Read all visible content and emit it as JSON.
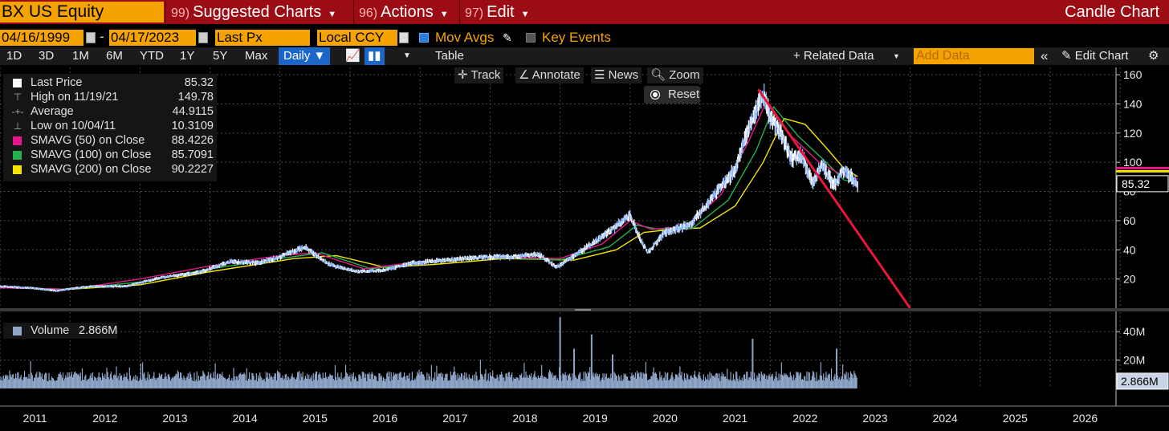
{
  "header": {
    "ticker": "BX US Equity",
    "menus": [
      {
        "num": "99)",
        "label": "Suggested Charts"
      },
      {
        "num": "96)",
        "label": "Actions"
      },
      {
        "num": "97)",
        "label": "Edit"
      }
    ],
    "chart_type_title": "Candle Chart"
  },
  "settings": {
    "start_date": "04/16/1999",
    "end_date": "04/17/2023",
    "date_sep": "-",
    "field": "Last Px",
    "currency": "Local CCY",
    "mov_avgs_label": "Mov Avgs",
    "key_events_label": "Key Events"
  },
  "toolbar": {
    "periods": [
      "1D",
      "3D",
      "1M",
      "6M",
      "YTD",
      "1Y",
      "5Y",
      "Max"
    ],
    "frequency": "Daily",
    "table_label": "Table",
    "related_data_label": "+ Related Data",
    "add_data_placeholder": "Add Data",
    "edit_chart_label": "Edit Chart"
  },
  "chart_tools": {
    "track": "Track",
    "annotate": "Annotate",
    "news": "News",
    "zoom": "Zoom",
    "reset": "Reset"
  },
  "legend": [
    {
      "name": "Last Price",
      "value": "85.32",
      "color": "#ffffff",
      "marker": "swatch"
    },
    {
      "name": "High on 11/19/21",
      "value": "149.78",
      "marker": "high"
    },
    {
      "name": "Average",
      "value": "44.9115",
      "marker": "avg"
    },
    {
      "name": "Low on 10/04/11",
      "value": "10.3109",
      "marker": "low"
    },
    {
      "name": "SMAVG (50)  on Close",
      "value": "88.4226",
      "color": "#e8168c",
      "marker": "swatch"
    },
    {
      "name": "SMAVG (100)  on Close",
      "value": "85.7091",
      "color": "#22b14c",
      "marker": "swatch"
    },
    {
      "name": "SMAVG (200)  on Close",
      "value": "90.2227",
      "color": "#f2e600",
      "marker": "swatch"
    }
  ],
  "volume_legend": {
    "name": "Volume",
    "value": "2.866M",
    "color": "#8fa6c8"
  },
  "colors": {
    "price": "#8fb8ff",
    "trendline": "#e8173a",
    "sma50": "#e8168c",
    "sma100": "#22b14c",
    "sma200": "#f2e600",
    "volume": "#8fa6c8",
    "accent": "#f5a300",
    "header": "#9c0c14"
  },
  "chart_data": {
    "type": "line",
    "x_ticks": [
      "2011",
      "2012",
      "2013",
      "2014",
      "2015",
      "2016",
      "2017",
      "2018",
      "2019",
      "2020",
      "2021",
      "2022",
      "2023",
      "2024",
      "2025",
      "2026"
    ],
    "price_axis": {
      "ylim": [
        0,
        165
      ],
      "ticks": [
        20,
        40,
        60,
        80,
        100,
        120,
        140,
        160
      ]
    },
    "last_price_label": "85.32",
    "price_series": {
      "name": "Last Price",
      "x": [
        2011.0,
        2011.4,
        2011.8,
        2012.3,
        2012.8,
        2013.3,
        2013.8,
        2014.3,
        2014.7,
        2015.0,
        2015.35,
        2015.7,
        2016.1,
        2016.5,
        2016.9,
        2017.4,
        2017.9,
        2018.3,
        2018.7,
        2018.95,
        2019.3,
        2019.7,
        2020.0,
        2020.15,
        2020.25,
        2020.5,
        2020.85,
        2021.2,
        2021.5,
        2021.75,
        2021.9,
        2022.0,
        2022.15,
        2022.3,
        2022.45,
        2022.6,
        2022.75,
        2022.9,
        2023.05,
        2023.25
      ],
      "y": [
        15,
        14,
        12,
        15,
        15,
        21,
        24,
        32,
        31,
        35,
        42,
        30,
        25,
        26,
        31,
        33,
        35,
        35,
        37,
        28,
        39,
        52,
        64,
        47,
        38,
        52,
        57,
        77,
        95,
        130,
        147,
        132,
        120,
        103,
        105,
        85,
        98,
        84,
        95,
        85.3
      ]
    },
    "sma50": {
      "name": "SMAVG (50) on Close",
      "x": [
        2011.0,
        2012.0,
        2013.0,
        2014.0,
        2015.0,
        2015.5,
        2016.2,
        2017.0,
        2018.0,
        2019.0,
        2019.6,
        2020.0,
        2020.3,
        2020.8,
        2021.3,
        2021.7,
        2021.95,
        2022.3,
        2022.7,
        2023.0,
        2023.25
      ],
      "y": [
        14,
        13,
        20,
        29,
        36,
        38,
        27,
        32,
        35,
        34,
        44,
        60,
        54,
        56,
        78,
        115,
        142,
        118,
        100,
        92,
        88.4
      ]
    },
    "sma100": {
      "name": "SMAVG (100) on Close",
      "x": [
        2011.0,
        2012.0,
        2013.0,
        2014.0,
        2015.0,
        2015.6,
        2016.3,
        2017.0,
        2018.0,
        2019.0,
        2019.7,
        2020.1,
        2020.4,
        2020.9,
        2021.4,
        2021.8,
        2022.05,
        2022.4,
        2022.8,
        2023.05,
        2023.25
      ],
      "y": [
        14,
        13,
        18,
        27,
        34,
        38,
        27,
        31,
        35,
        33,
        42,
        57,
        54,
        55,
        74,
        108,
        138,
        118,
        100,
        88,
        85.7
      ]
    },
    "sma200": {
      "name": "SMAVG (200) on Close",
      "x": [
        2011.0,
        2012.0,
        2013.0,
        2014.0,
        2015.2,
        2015.8,
        2016.5,
        2017.2,
        2018.2,
        2019.2,
        2019.8,
        2020.2,
        2020.6,
        2021.0,
        2021.5,
        2021.9,
        2022.2,
        2022.5,
        2022.8,
        2023.05,
        2023.25
      ],
      "y": [
        14,
        13,
        16,
        25,
        34,
        36,
        28,
        30,
        34,
        33,
        40,
        52,
        54,
        55,
        70,
        100,
        130,
        126,
        110,
        96,
        90.2
      ]
    },
    "trendline": {
      "x": [
        2021.83,
        2024.0
      ],
      "y": [
        150,
        0
      ]
    },
    "volume_axis": {
      "ylim": [
        0,
        52
      ],
      "ticks": [
        "20M",
        "40M"
      ],
      "tick_values": [
        20,
        40
      ]
    },
    "last_volume_label": "2.866M",
    "volume_spikes": {
      "x": [
        2019.0,
        2019.2,
        2019.45,
        2019.75,
        2021.75,
        2022.95
      ],
      "y": [
        50,
        28,
        38,
        24,
        35,
        28
      ]
    }
  }
}
